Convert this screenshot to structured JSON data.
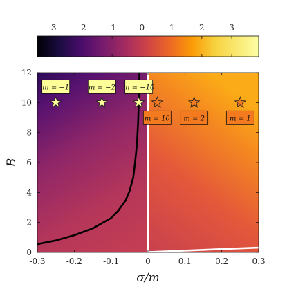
{
  "chart_data": {
    "type": "heatmap",
    "title": "",
    "xlabel": "σ/m",
    "ylabel": "B",
    "xlim": [
      -0.3,
      0.3
    ],
    "ylim": [
      0,
      12
    ],
    "xticks": [
      "-0.3",
      "-0.2",
      "-0.1",
      "0",
      "0.1",
      "0.2",
      "0.3"
    ],
    "xtick_values": [
      -0.3,
      -0.2,
      -0.1,
      0,
      0.1,
      0.2,
      0.3
    ],
    "yticks": [
      "0",
      "2",
      "4",
      "6",
      "8",
      "10",
      "12"
    ],
    "ytick_values": [
      0,
      2,
      4,
      6,
      8,
      10,
      12
    ],
    "grid": false,
    "colorbar": {
      "orientation": "horizontal",
      "placement": "top",
      "colormap": "inferno",
      "range": [
        -3.5,
        3.9
      ],
      "ticks": [
        "-3",
        "-2",
        "-1",
        "0",
        "1",
        "2",
        "3"
      ],
      "tick_values": [
        -3,
        -2,
        -1,
        0,
        1,
        2,
        3
      ]
    },
    "curves": [
      {
        "color": "#000000",
        "points": [
          [
            -0.3,
            0.55
          ],
          [
            -0.25,
            0.8
          ],
          [
            -0.2,
            1.15
          ],
          [
            -0.15,
            1.6
          ],
          [
            -0.1,
            2.3
          ],
          [
            -0.08,
            2.8
          ],
          [
            -0.06,
            3.5
          ],
          [
            -0.05,
            4.1
          ],
          [
            -0.04,
            5.0
          ],
          [
            -0.035,
            6.0
          ],
          [
            -0.03,
            7.2
          ],
          [
            -0.027,
            8.6
          ],
          [
            -0.025,
            10.0
          ],
          [
            -0.024,
            11.2
          ],
          [
            -0.023,
            12.0
          ]
        ]
      },
      {
        "color": "#ffffff",
        "points": [
          [
            0.0,
            0.0
          ],
          [
            0.0,
            12.0
          ]
        ]
      },
      {
        "color": "#ffffff",
        "points": [
          [
            0.0,
            0.02
          ],
          [
            0.1,
            0.12
          ],
          [
            0.2,
            0.22
          ],
          [
            0.3,
            0.32
          ]
        ]
      }
    ],
    "markers": [
      {
        "x": -0.25,
        "y": 10,
        "fill": "#ffff99",
        "label": "m = −1",
        "label_pos": "above",
        "label_bg": "#ffff99"
      },
      {
        "x": -0.125,
        "y": 10,
        "fill": "#ffff99",
        "label": "m = −2",
        "label_pos": "above",
        "label_bg": "#ffff99"
      },
      {
        "x": -0.025,
        "y": 10,
        "fill": "#ffff99",
        "label": "m = −10",
        "label_pos": "above",
        "label_bg": "#ffff99"
      },
      {
        "x": 0.025,
        "y": 10,
        "fill": "#f47a20",
        "label": "m = 10",
        "label_pos": "below",
        "label_bg": "#f47a20"
      },
      {
        "x": 0.125,
        "y": 10,
        "fill": "#f47a20",
        "label": "m = 2",
        "label_pos": "below",
        "label_bg": "#f47a20"
      },
      {
        "x": 0.25,
        "y": 10,
        "fill": "#f47a20",
        "label": "m = 1",
        "label_pos": "below",
        "label_bg": "#f47a20"
      }
    ]
  }
}
